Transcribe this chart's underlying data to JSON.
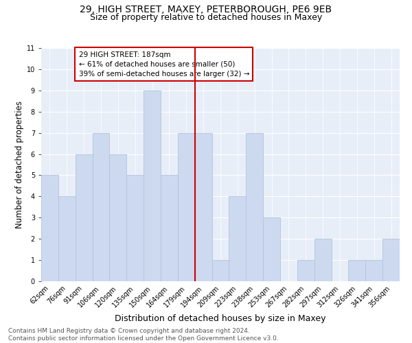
{
  "title": "29, HIGH STREET, MAXEY, PETERBOROUGH, PE6 9EB",
  "subtitle": "Size of property relative to detached houses in Maxey",
  "xlabel": "Distribution of detached houses by size in Maxey",
  "ylabel": "Number of detached properties",
  "categories": [
    "62sqm",
    "76sqm",
    "91sqm",
    "106sqm",
    "120sqm",
    "135sqm",
    "150sqm",
    "164sqm",
    "179sqm",
    "194sqm",
    "209sqm",
    "223sqm",
    "238sqm",
    "253sqm",
    "267sqm",
    "282sqm",
    "297sqm",
    "312sqm",
    "326sqm",
    "341sqm",
    "356sqm"
  ],
  "values": [
    5,
    4,
    6,
    7,
    6,
    5,
    9,
    5,
    7,
    7,
    1,
    4,
    7,
    3,
    0,
    1,
    2,
    0,
    1,
    1,
    2
  ],
  "bar_color": "#ccd9ee",
  "bar_edge_color": "#b0c4de",
  "vline_x_index": 8,
  "vline_color": "#cc0000",
  "annotation_title": "29 HIGH STREET: 187sqm",
  "annotation_line1": "← 61% of detached houses are smaller (50)",
  "annotation_line2": "39% of semi-detached houses are larger (32) →",
  "annotation_box_color": "#cc0000",
  "ylim": [
    0,
    11
  ],
  "yticks": [
    0,
    1,
    2,
    3,
    4,
    5,
    6,
    7,
    8,
    9,
    10,
    11
  ],
  "footer_line1": "Contains HM Land Registry data © Crown copyright and database right 2024.",
  "footer_line2": "Contains public sector information licensed under the Open Government Licence v3.0.",
  "bg_color": "#e8eef8",
  "title_fontsize": 10,
  "subtitle_fontsize": 9,
  "xlabel_fontsize": 9,
  "ylabel_fontsize": 8.5,
  "tick_fontsize": 7,
  "annotation_fontsize": 7.5,
  "footer_fontsize": 6.5
}
